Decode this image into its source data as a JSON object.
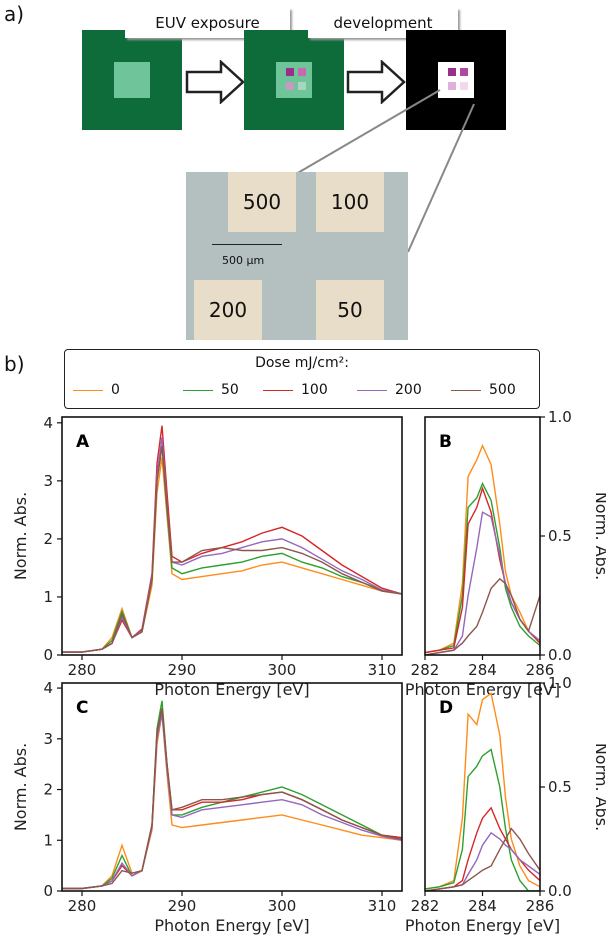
{
  "figure": {
    "panel_a_label": "a)",
    "panel_b_label": "b)",
    "steps": [
      "EUV exposure",
      "development"
    ],
    "colors": {
      "resist": "#0e6b3a",
      "exposed": "#6fc49a",
      "background_dark": "#000000",
      "pad_dark": "#9a2f8a",
      "pad_light": "#e0b0d6"
    },
    "micrograph": {
      "pads": [
        "500",
        "100",
        "200",
        "50"
      ],
      "scale_bar": "500 µm"
    }
  },
  "legend": {
    "title": "Dose mJ/cm²:",
    "entries": [
      {
        "label": "0",
        "color": "#ff8c1a"
      },
      {
        "label": "50",
        "color": "#2ca02c"
      },
      {
        "label": "100",
        "color": "#d62728"
      },
      {
        "label": "200",
        "color": "#9467bd"
      },
      {
        "label": "500",
        "color": "#8c564b"
      }
    ]
  },
  "chart_data": [
    {
      "panel": "A",
      "type": "line",
      "xlabel": "Photon Energy [eV]",
      "ylabel": "Norm. Abs.",
      "xlim": [
        278,
        312
      ],
      "ylim": [
        0,
        4.1
      ],
      "xticks": [
        280,
        290,
        300,
        310
      ],
      "yticks": [
        0,
        1,
        2,
        3,
        4
      ],
      "series": [
        {
          "name": "0",
          "x": [
            278,
            280,
            282,
            283,
            284,
            285,
            286,
            287,
            287.5,
            288,
            288.5,
            289,
            290,
            292,
            294,
            296,
            298,
            300,
            302,
            304,
            306,
            308,
            310,
            312
          ],
          "y": [
            0.05,
            0.05,
            0.1,
            0.3,
            0.8,
            0.3,
            0.4,
            1.2,
            2.8,
            3.4,
            2.4,
            1.4,
            1.3,
            1.35,
            1.4,
            1.45,
            1.55,
            1.6,
            1.5,
            1.4,
            1.3,
            1.2,
            1.1,
            1.05
          ]
        },
        {
          "name": "50",
          "x": [
            278,
            280,
            282,
            283,
            284,
            285,
            286,
            287,
            287.5,
            288,
            288.5,
            289,
            290,
            292,
            294,
            296,
            298,
            300,
            302,
            304,
            306,
            308,
            310,
            312
          ],
          "y": [
            0.05,
            0.05,
            0.1,
            0.25,
            0.75,
            0.3,
            0.4,
            1.3,
            3.0,
            3.6,
            2.5,
            1.5,
            1.4,
            1.5,
            1.55,
            1.6,
            1.7,
            1.75,
            1.6,
            1.5,
            1.35,
            1.25,
            1.12,
            1.05
          ]
        },
        {
          "name": "100",
          "x": [
            278,
            280,
            282,
            283,
            284,
            285,
            286,
            287,
            287.5,
            288,
            288.5,
            289,
            290,
            292,
            294,
            296,
            298,
            300,
            302,
            304,
            306,
            308,
            310,
            312
          ],
          "y": [
            0.05,
            0.05,
            0.1,
            0.2,
            0.6,
            0.3,
            0.45,
            1.4,
            3.3,
            3.95,
            2.8,
            1.7,
            1.6,
            1.75,
            1.85,
            1.95,
            2.1,
            2.2,
            2.05,
            1.8,
            1.55,
            1.35,
            1.15,
            1.05
          ]
        },
        {
          "name": "200",
          "x": [
            278,
            280,
            282,
            283,
            284,
            285,
            286,
            287,
            287.5,
            288,
            288.5,
            289,
            290,
            292,
            294,
            296,
            298,
            300,
            302,
            304,
            306,
            308,
            310,
            312
          ],
          "y": [
            0.05,
            0.05,
            0.1,
            0.2,
            0.65,
            0.3,
            0.42,
            1.35,
            3.1,
            3.75,
            2.6,
            1.6,
            1.55,
            1.7,
            1.75,
            1.85,
            1.95,
            2.0,
            1.85,
            1.65,
            1.45,
            1.3,
            1.12,
            1.05
          ]
        },
        {
          "name": "500",
          "x": [
            278,
            280,
            282,
            283,
            284,
            285,
            286,
            287,
            287.5,
            288,
            288.5,
            289,
            290,
            292,
            294,
            296,
            298,
            300,
            302,
            304,
            306,
            308,
            310,
            312
          ],
          "y": [
            0.05,
            0.05,
            0.1,
            0.2,
            0.7,
            0.3,
            0.4,
            1.3,
            3.0,
            3.6,
            2.55,
            1.6,
            1.6,
            1.8,
            1.85,
            1.8,
            1.8,
            1.85,
            1.75,
            1.6,
            1.4,
            1.25,
            1.1,
            1.05
          ]
        }
      ]
    },
    {
      "panel": "B",
      "type": "line",
      "xlabel": "Photon Energy [eV]",
      "ylabel": "Norm. Abs.",
      "xlim": [
        282,
        286
      ],
      "ylim": [
        0,
        1.0
      ],
      "xticks": [
        282,
        284,
        286
      ],
      "yticks": [
        0.0,
        0.5,
        1.0
      ],
      "series": [
        {
          "name": "0",
          "x": [
            282,
            282.5,
            283,
            283.3,
            283.5,
            283.8,
            284,
            284.3,
            284.6,
            284.8,
            285,
            285.3,
            285.6,
            286
          ],
          "y": [
            0.01,
            0.02,
            0.05,
            0.3,
            0.75,
            0.82,
            0.88,
            0.8,
            0.55,
            0.35,
            0.25,
            0.18,
            0.1,
            0.05
          ]
        },
        {
          "name": "50",
          "x": [
            282,
            282.5,
            283,
            283.3,
            283.5,
            283.8,
            284,
            284.3,
            284.6,
            284.8,
            285,
            285.3,
            285.6,
            286
          ],
          "y": [
            0.01,
            0.02,
            0.04,
            0.25,
            0.62,
            0.66,
            0.72,
            0.65,
            0.45,
            0.28,
            0.2,
            0.12,
            0.08,
            0.04
          ]
        },
        {
          "name": "100",
          "x": [
            282,
            282.5,
            283,
            283.3,
            283.5,
            283.8,
            284,
            284.3,
            284.6,
            284.8,
            285,
            285.3,
            285.6,
            286
          ],
          "y": [
            0.01,
            0.02,
            0.03,
            0.2,
            0.55,
            0.62,
            0.7,
            0.6,
            0.4,
            0.3,
            0.22,
            0.15,
            0.1,
            0.05
          ]
        },
        {
          "name": "200",
          "x": [
            282,
            282.5,
            283,
            283.3,
            283.5,
            283.8,
            284,
            284.3,
            284.6,
            284.8,
            285,
            285.3,
            285.6,
            286
          ],
          "y": [
            0.0,
            0.01,
            0.02,
            0.08,
            0.25,
            0.45,
            0.6,
            0.58,
            0.42,
            0.3,
            0.22,
            0.15,
            0.1,
            0.06
          ]
        },
        {
          "name": "500",
          "x": [
            282,
            282.5,
            283,
            283.3,
            283.5,
            283.8,
            284,
            284.3,
            284.6,
            284.8,
            285,
            285.3,
            285.6,
            286
          ],
          "y": [
            0.0,
            0.01,
            0.02,
            0.05,
            0.08,
            0.12,
            0.18,
            0.28,
            0.32,
            0.3,
            0.25,
            0.15,
            0.1,
            0.25
          ]
        }
      ]
    },
    {
      "panel": "C",
      "type": "line",
      "xlabel": "Photon Energy [eV]",
      "ylabel": "Norm. Abs.",
      "xlim": [
        278,
        312
      ],
      "ylim": [
        0,
        4.1
      ],
      "xticks": [
        280,
        290,
        300,
        310
      ],
      "yticks": [
        0,
        1,
        2,
        3,
        4
      ],
      "series": [
        {
          "name": "0",
          "x": [
            278,
            280,
            282,
            283,
            284,
            285,
            286,
            287,
            287.5,
            288,
            288.5,
            289,
            290,
            292,
            294,
            296,
            298,
            300,
            302,
            304,
            306,
            308,
            310,
            312
          ],
          "y": [
            0.05,
            0.05,
            0.1,
            0.3,
            0.9,
            0.35,
            0.4,
            1.2,
            2.9,
            3.5,
            2.3,
            1.3,
            1.25,
            1.3,
            1.35,
            1.4,
            1.45,
            1.5,
            1.4,
            1.3,
            1.2,
            1.1,
            1.05,
            1.0
          ]
        },
        {
          "name": "50",
          "x": [
            278,
            280,
            282,
            283,
            284,
            285,
            286,
            287,
            287.5,
            288,
            288.5,
            289,
            290,
            292,
            294,
            296,
            298,
            300,
            302,
            304,
            306,
            308,
            310,
            312
          ],
          "y": [
            0.05,
            0.05,
            0.1,
            0.25,
            0.7,
            0.3,
            0.4,
            1.3,
            3.2,
            3.75,
            2.5,
            1.5,
            1.5,
            1.65,
            1.75,
            1.85,
            1.95,
            2.05,
            1.9,
            1.7,
            1.5,
            1.3,
            1.1,
            1.05
          ]
        },
        {
          "name": "100",
          "x": [
            278,
            280,
            282,
            283,
            284,
            285,
            286,
            287,
            287.5,
            288,
            288.5,
            289,
            290,
            292,
            294,
            296,
            298,
            300,
            302,
            304,
            306,
            308,
            310,
            312
          ],
          "y": [
            0.05,
            0.05,
            0.1,
            0.2,
            0.5,
            0.3,
            0.4,
            1.3,
            3.1,
            3.6,
            2.5,
            1.6,
            1.6,
            1.75,
            1.75,
            1.8,
            1.9,
            1.95,
            1.8,
            1.6,
            1.4,
            1.25,
            1.1,
            1.05
          ]
        },
        {
          "name": "200",
          "x": [
            278,
            280,
            282,
            283,
            284,
            285,
            286,
            287,
            287.5,
            288,
            288.5,
            289,
            290,
            292,
            294,
            296,
            298,
            300,
            302,
            304,
            306,
            308,
            310,
            312
          ],
          "y": [
            0.05,
            0.05,
            0.1,
            0.2,
            0.55,
            0.3,
            0.4,
            1.25,
            3.0,
            3.5,
            2.4,
            1.5,
            1.45,
            1.6,
            1.65,
            1.7,
            1.75,
            1.8,
            1.7,
            1.5,
            1.35,
            1.2,
            1.08,
            1.0
          ]
        },
        {
          "name": "500",
          "x": [
            278,
            280,
            282,
            283,
            284,
            285,
            286,
            287,
            287.5,
            288,
            288.5,
            289,
            290,
            292,
            294,
            296,
            298,
            300,
            302,
            304,
            306,
            308,
            310,
            312
          ],
          "y": [
            0.05,
            0.05,
            0.1,
            0.15,
            0.4,
            0.35,
            0.4,
            1.3,
            3.1,
            3.6,
            2.5,
            1.6,
            1.65,
            1.8,
            1.8,
            1.85,
            1.9,
            1.95,
            1.8,
            1.6,
            1.4,
            1.25,
            1.1,
            1.02
          ]
        }
      ]
    },
    {
      "panel": "D",
      "type": "line",
      "xlabel": "Photon Energy [eV]",
      "ylabel": "Norm. Abs.",
      "xlim": [
        282,
        286
      ],
      "ylim": [
        0,
        1.0
      ],
      "xticks": [
        282,
        284,
        286
      ],
      "yticks": [
        0.0,
        0.5,
        1.0
      ],
      "series": [
        {
          "name": "0",
          "x": [
            282,
            282.5,
            283,
            283.3,
            283.5,
            283.8,
            284,
            284.3,
            284.6,
            284.8,
            285,
            285.3,
            285.6,
            286
          ],
          "y": [
            0.01,
            0.02,
            0.05,
            0.35,
            0.85,
            0.8,
            0.92,
            0.95,
            0.75,
            0.45,
            0.25,
            0.12,
            0.05,
            0.02
          ]
        },
        {
          "name": "50",
          "x": [
            282,
            282.5,
            283,
            283.3,
            283.5,
            283.8,
            284,
            284.3,
            284.6,
            284.8,
            285,
            285.3,
            285.6,
            286
          ],
          "y": [
            0.01,
            0.02,
            0.04,
            0.2,
            0.55,
            0.6,
            0.65,
            0.68,
            0.5,
            0.3,
            0.15,
            0.05,
            0.0,
            0.0
          ]
        },
        {
          "name": "100",
          "x": [
            282,
            282.5,
            283,
            283.3,
            283.5,
            283.8,
            284,
            284.3,
            284.6,
            284.8,
            285,
            285.3,
            285.6,
            286
          ],
          "y": [
            0.0,
            0.01,
            0.02,
            0.05,
            0.15,
            0.28,
            0.35,
            0.4,
            0.3,
            0.25,
            0.2,
            0.15,
            0.1,
            0.05
          ]
        },
        {
          "name": "200",
          "x": [
            282,
            282.5,
            283,
            283.3,
            283.5,
            283.8,
            284,
            284.3,
            284.6,
            284.8,
            285,
            285.3,
            285.6,
            286
          ],
          "y": [
            0.0,
            0.01,
            0.02,
            0.03,
            0.08,
            0.15,
            0.22,
            0.28,
            0.25,
            0.22,
            0.2,
            0.15,
            0.12,
            0.08
          ]
        },
        {
          "name": "500",
          "x": [
            282,
            282.5,
            283,
            283.3,
            283.5,
            283.8,
            284,
            284.3,
            284.6,
            284.8,
            285,
            285.3,
            285.6,
            286
          ],
          "y": [
            0.0,
            0.01,
            0.02,
            0.03,
            0.05,
            0.08,
            0.1,
            0.12,
            0.2,
            0.25,
            0.3,
            0.25,
            0.18,
            0.1
          ]
        }
      ]
    }
  ]
}
